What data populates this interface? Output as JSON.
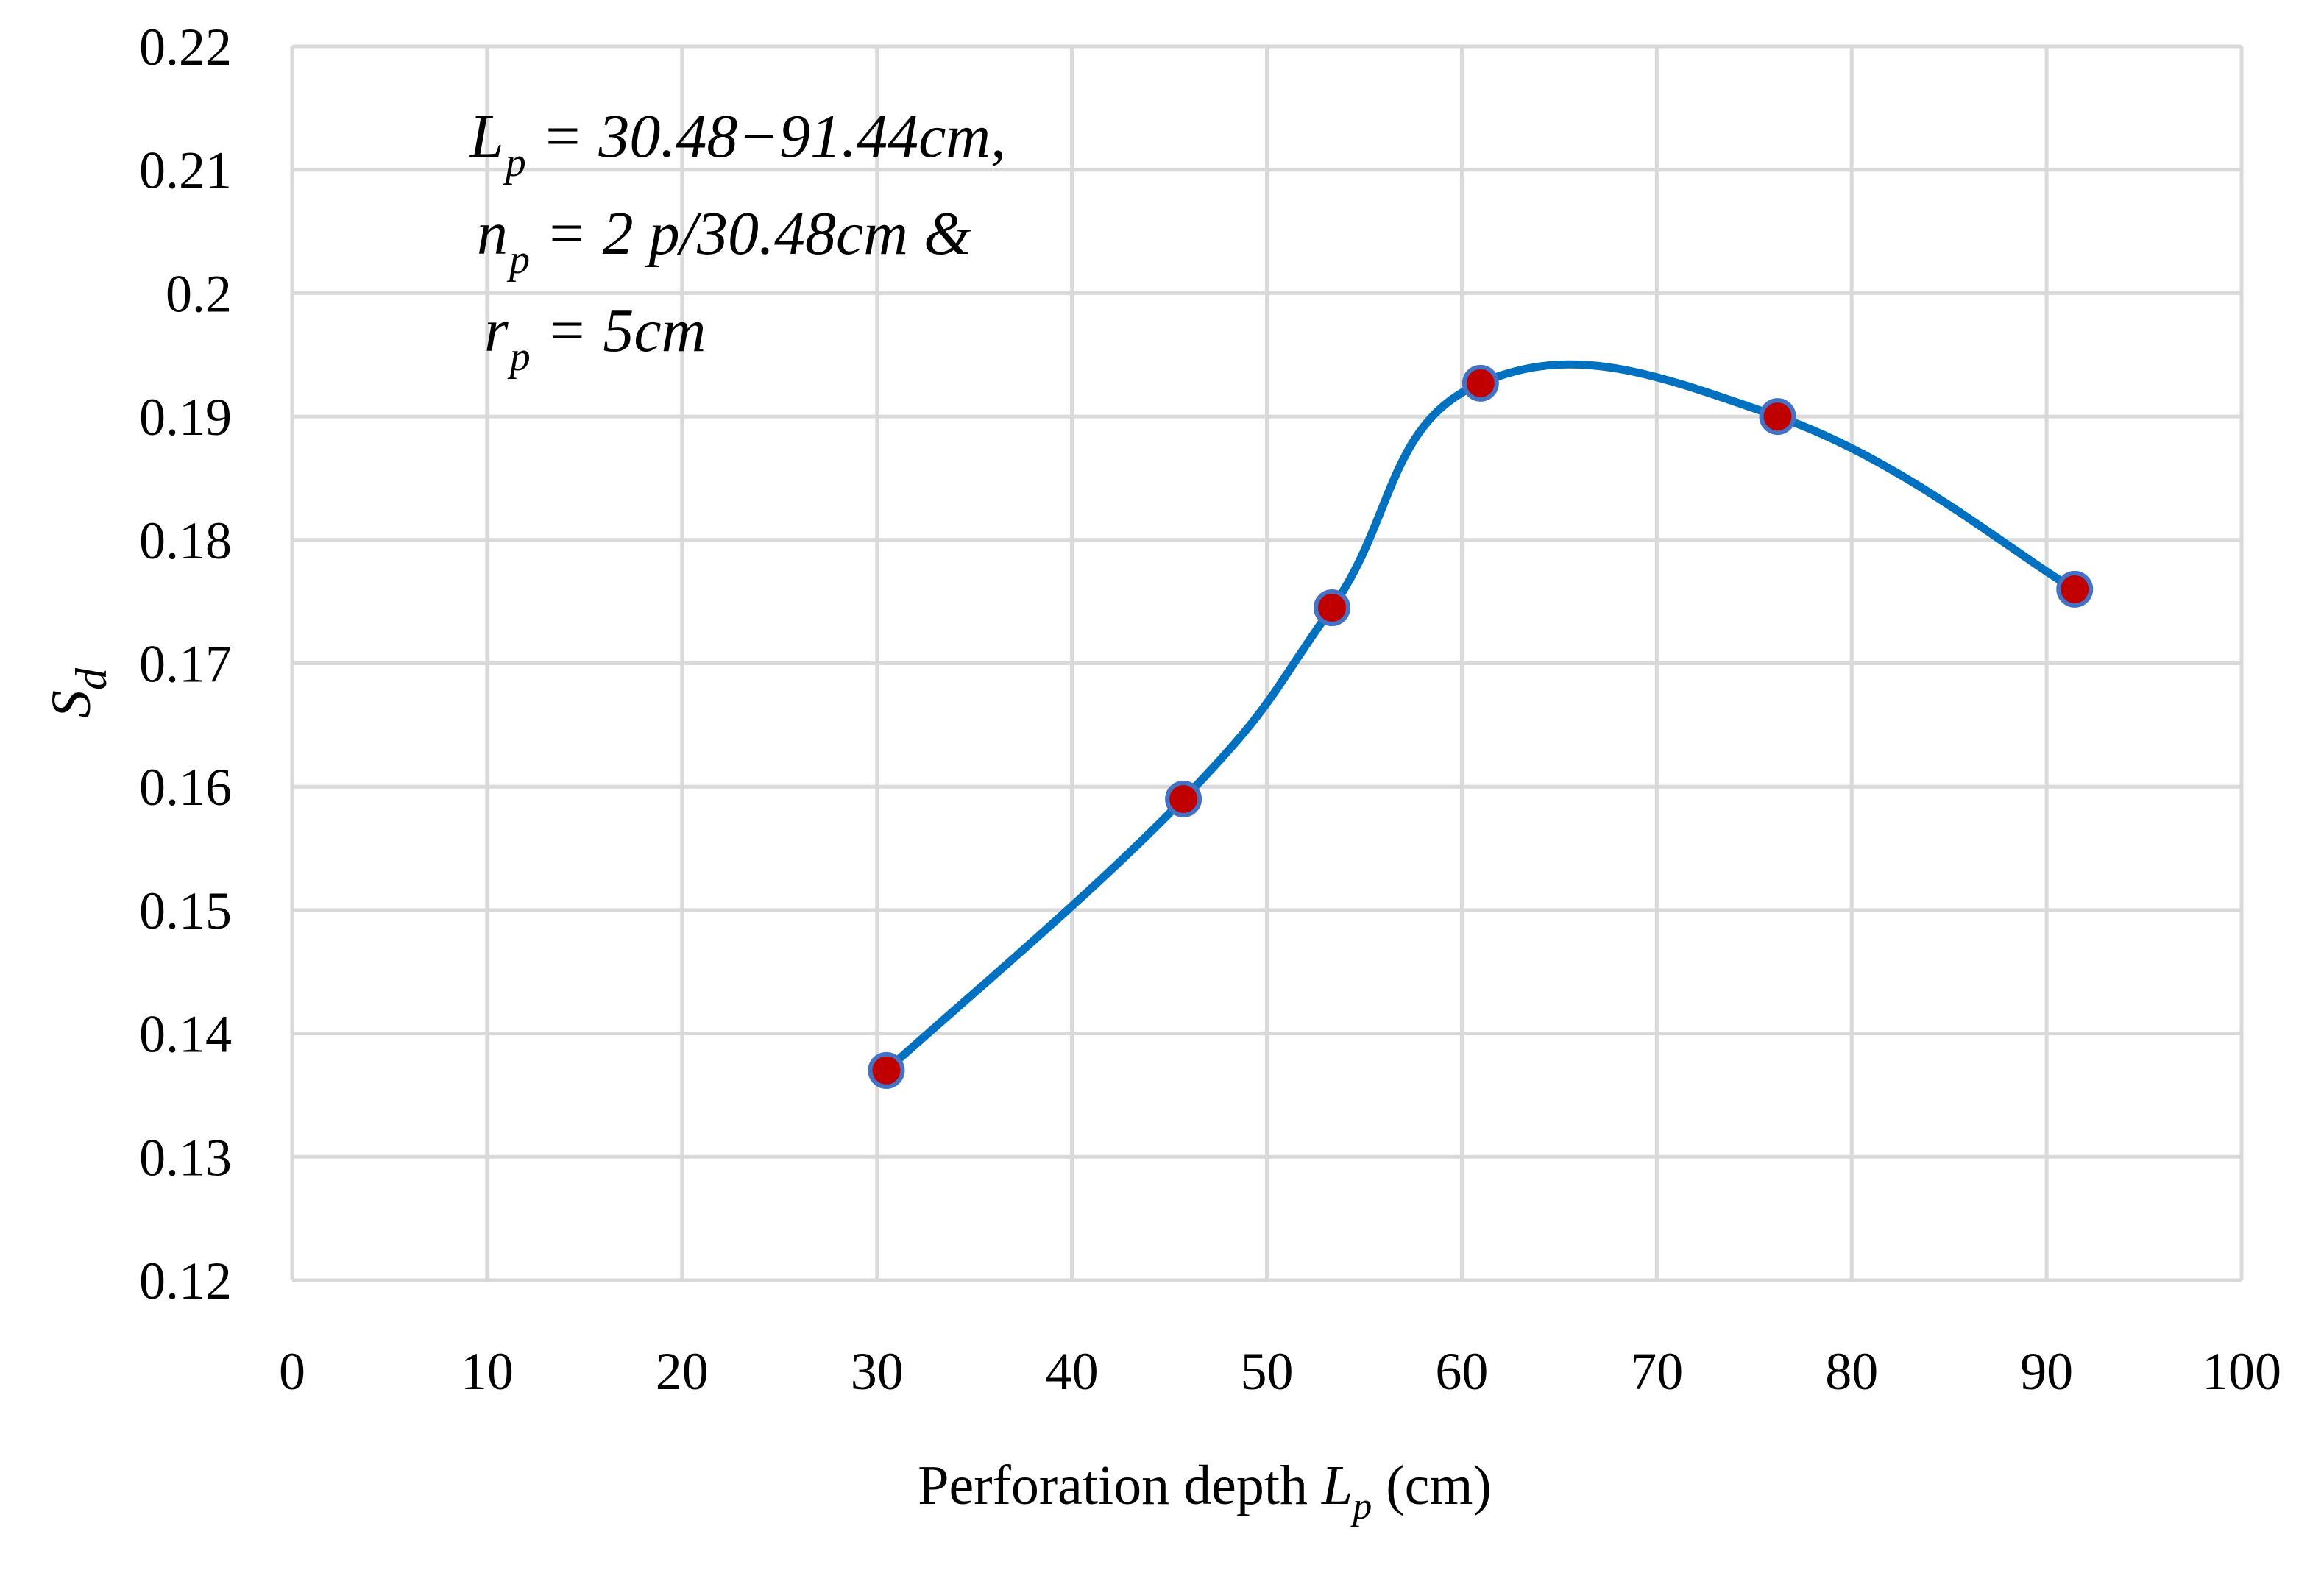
{
  "chart_data": {
    "type": "line",
    "title": "",
    "xlabel": {
      "prefix": "Perforation depth ",
      "var": "L",
      "sub": "p",
      "suffix": " (cm)"
    },
    "ylabel": {
      "var": "S",
      "sub": "d"
    },
    "xlim": [
      0,
      100
    ],
    "ylim": [
      0.12,
      0.22
    ],
    "x_ticks": [
      0,
      10,
      20,
      30,
      40,
      50,
      60,
      70,
      80,
      90,
      100
    ],
    "x_tick_labels": [
      "0",
      "10",
      "20",
      "30",
      "40",
      "50",
      "60",
      "70",
      "80",
      "90",
      "100"
    ],
    "y_ticks": [
      0.12,
      0.13,
      0.14,
      0.15,
      0.16,
      0.17,
      0.18,
      0.19,
      0.2,
      0.21,
      0.22
    ],
    "y_tick_labels": [
      "0.12",
      "0.13",
      "0.14",
      "0.15",
      "0.16",
      "0.17",
      "0.18",
      "0.19",
      "0.2",
      "0.21",
      "0.22"
    ],
    "grid": true,
    "legend": "none",
    "series": [
      {
        "name": "S_d",
        "smooth": true,
        "x": [
          30.48,
          45.72,
          53.34,
          60.96,
          76.2,
          91.44
        ],
        "values": [
          0.137,
          0.159,
          0.1745,
          0.1927,
          0.19,
          0.176
        ]
      }
    ],
    "colors": {
      "line": "#0070c0",
      "marker_fill": "#c00000",
      "marker_edge": "#4472c4",
      "grid": "#d9d9d9"
    },
    "annotations": [
      {
        "var": "L",
        "sub": "p",
        "text": " = 30.48−91.44cm,"
      },
      {
        "var": "n",
        "sub": "p",
        "text": " = 2 p/30.48cm &"
      },
      {
        "var": "r",
        "sub": "p",
        "text": " = 5cm"
      }
    ]
  }
}
